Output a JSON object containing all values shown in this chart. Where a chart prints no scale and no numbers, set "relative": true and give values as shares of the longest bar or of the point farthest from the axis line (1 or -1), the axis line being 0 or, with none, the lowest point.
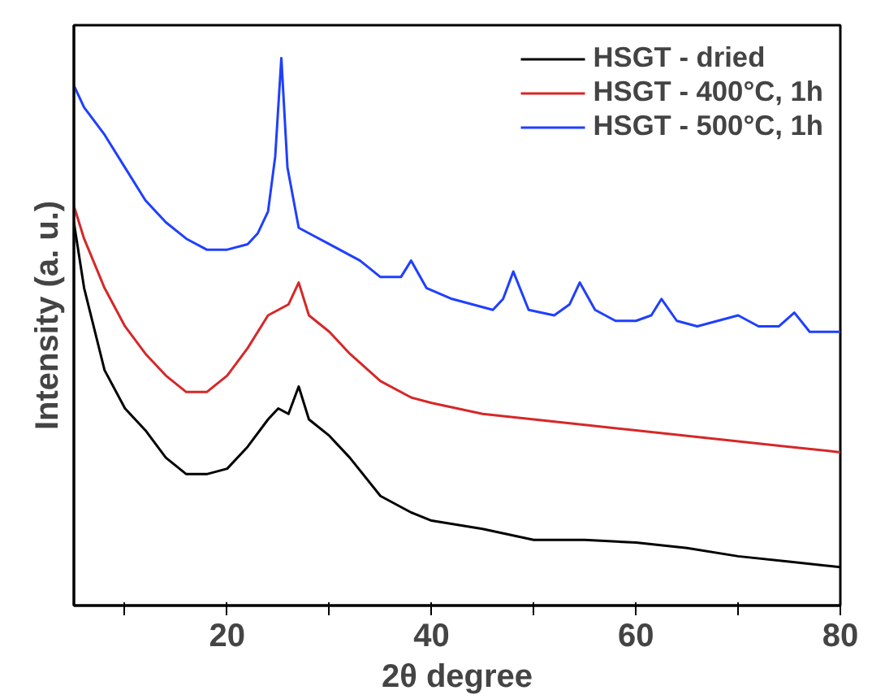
{
  "chart_data": {
    "type": "line",
    "xlabel": "2θ degree",
    "ylabel": "Intensity (a. u.)",
    "relative": true,
    "xlim": [
      5,
      80
    ],
    "xticks": [
      {
        "value": 10,
        "label": null
      },
      20,
      {
        "value": 30,
        "label": null
      },
      40,
      {
        "value": 50,
        "label": null
      },
      60,
      {
        "value": 70,
        "label": null
      },
      80
    ],
    "tick_labels": "x",
    "grid": false,
    "legend": "top right",
    "line_style": "solid",
    "marker": "none",
    "series": [
      {
        "name": "HSGT - dried",
        "color": "#000000",
        "x": [
          5,
          6,
          8,
          10,
          12,
          14,
          16,
          18,
          20,
          22,
          24,
          25,
          26,
          27,
          28,
          30,
          32,
          35,
          38,
          40,
          45,
          50,
          55,
          60,
          65,
          70,
          75,
          80
        ],
        "values": [
          0.7,
          0.58,
          0.43,
          0.36,
          0.32,
          0.27,
          0.24,
          0.24,
          0.25,
          0.29,
          0.34,
          0.36,
          0.35,
          0.4,
          0.34,
          0.31,
          0.27,
          0.2,
          0.17,
          0.155,
          0.14,
          0.12,
          0.12,
          0.115,
          0.105,
          0.09,
          0.08,
          0.07
        ]
      },
      {
        "name": "HSGT - 400°C, 1h",
        "color": "#d62728",
        "x": [
          5,
          6,
          8,
          10,
          12,
          14,
          16,
          18,
          20,
          22,
          24,
          26,
          27,
          28,
          30,
          32,
          35,
          38,
          40,
          45,
          50,
          55,
          60,
          65,
          70,
          75,
          80
        ],
        "values": [
          0.73,
          0.67,
          0.58,
          0.51,
          0.46,
          0.42,
          0.39,
          0.39,
          0.42,
          0.47,
          0.53,
          0.55,
          0.59,
          0.53,
          0.5,
          0.46,
          0.41,
          0.38,
          0.37,
          0.35,
          0.34,
          0.33,
          0.32,
          0.31,
          0.3,
          0.29,
          0.28
        ]
      },
      {
        "name": "HSGT - 500°C, 1h",
        "color": "#1f3fff",
        "x": [
          5,
          6,
          8,
          10,
          12,
          14,
          16,
          18,
          20,
          22,
          23,
          24,
          24.7,
          25.3,
          25.9,
          27,
          28,
          30,
          33,
          35,
          37,
          38,
          39.5,
          42,
          44,
          46,
          47,
          48,
          49.5,
          52,
          53.5,
          54.5,
          56,
          58,
          60,
          61.5,
          62.5,
          64,
          66,
          68,
          70,
          72,
          74,
          75.5,
          77,
          80
        ],
        "values": [
          0.95,
          0.91,
          0.86,
          0.8,
          0.74,
          0.7,
          0.67,
          0.65,
          0.65,
          0.66,
          0.68,
          0.72,
          0.82,
          1.0,
          0.8,
          0.69,
          0.68,
          0.66,
          0.63,
          0.6,
          0.6,
          0.63,
          0.58,
          0.56,
          0.55,
          0.54,
          0.56,
          0.61,
          0.54,
          0.53,
          0.55,
          0.59,
          0.54,
          0.52,
          0.52,
          0.53,
          0.56,
          0.52,
          0.51,
          0.52,
          0.53,
          0.51,
          0.51,
          0.535,
          0.5,
          0.5
        ]
      }
    ]
  }
}
